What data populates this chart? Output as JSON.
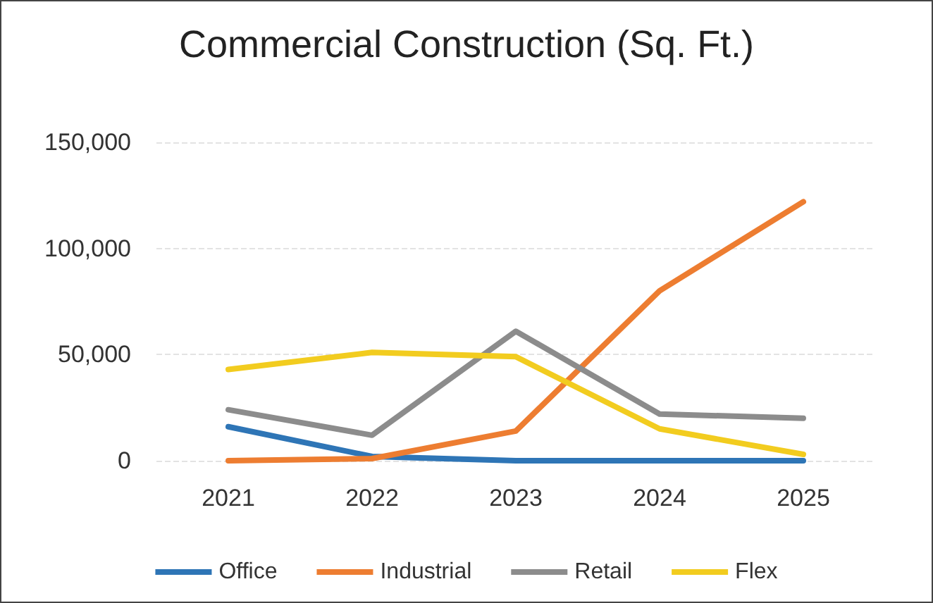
{
  "chart_data": {
    "type": "line",
    "title": "Commercial Construction (Sq. Ft.)",
    "categories": [
      "2021",
      "2022",
      "2023",
      "2024",
      "2025"
    ],
    "series": [
      {
        "name": "Office",
        "color": "#2e75b6",
        "values": [
          16000,
          2000,
          0,
          0,
          0
        ]
      },
      {
        "name": "Industrial",
        "color": "#ed7d31",
        "values": [
          0,
          1000,
          14000,
          80000,
          122000
        ]
      },
      {
        "name": "Retail",
        "color": "#8c8c8c",
        "values": [
          24000,
          12000,
          61000,
          22000,
          20000
        ]
      },
      {
        "name": "Flex",
        "color": "#f2cc1f",
        "values": [
          43000,
          51000,
          49000,
          15000,
          3000
        ]
      }
    ],
    "ylim": [
      0,
      150000
    ],
    "yticks": [
      0,
      {
        "value": 50000,
        "label": "50,000"
      },
      {
        "value": 100000,
        "label": "100,000"
      },
      {
        "value": 150000,
        "label": "150,000"
      }
    ],
    "grid": "y",
    "legend": "bottom",
    "marker": "none",
    "line_style": "solid"
  }
}
